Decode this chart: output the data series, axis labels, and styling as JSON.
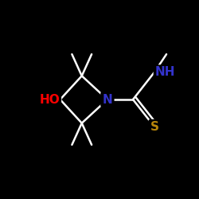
{
  "background_color": "#000000",
  "bond_color": "#ffffff",
  "atom_colors": {
    "HO": "#ff0000",
    "N_ring": "#3333cc",
    "NH": "#3333cc",
    "S": "#b8860b"
  },
  "figsize": [
    2.5,
    2.5
  ],
  "dpi": 100,
  "lw": 1.8,
  "font_size": 11
}
